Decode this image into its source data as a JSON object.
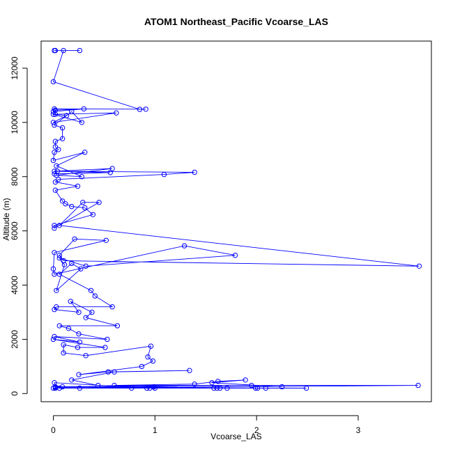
{
  "chart_data": {
    "type": "line",
    "title": "ATOM1 Northeast_Pacific Vcoarse_LAS",
    "xlabel": "Vcoarse_LAS",
    "ylabel": "Altitude (m)",
    "xlim": [
      -0.12,
      3.72
    ],
    "ylim": [
      -300,
      13000
    ],
    "xticks": [
      0,
      1,
      2,
      3
    ],
    "xtick_labels": [
      "0",
      "1",
      "2",
      "3"
    ],
    "yticks": [
      0,
      2000,
      4000,
      6000,
      8000,
      10000,
      12000
    ],
    "ytick_labels": [
      "0",
      "2000",
      "4000",
      "6000",
      "8000",
      "10000",
      "12000"
    ],
    "grid": false,
    "legend": "none",
    "series_color": "#0000ff",
    "marker": "open-circle",
    "series": [
      {
        "x": [
          0.01,
          0.26,
          0.02,
          0.1,
          0.0,
          0.85,
          0.91,
          0.01,
          0.0,
          0.3,
          0.02,
          0.02,
          0.13,
          0.0,
          0.62,
          0.0,
          0.28,
          0.18,
          0.01,
          0.09,
          0.09,
          0.02,
          0.02,
          0.05,
          0.01,
          0.0,
          0.31,
          0.03,
          0.28,
          0.03,
          0.58,
          0.01,
          0.56,
          0.01,
          0.04,
          1.39,
          1.09,
          0.05,
          0.02,
          0.24,
          0.02,
          0.09,
          0.12,
          0.18,
          0.31,
          0.39,
          0.01,
          0.01,
          0.45,
          0.29,
          0.06,
          3.6,
          0.1,
          0.06,
          0.21,
          0.52,
          0.01,
          0.0,
          0.01,
          1.29,
          1.79,
          0.32,
          0.06,
          0.11,
          0.03,
          0.27,
          0.18,
          0.06,
          0.37,
          0.41,
          0.58,
          0.03,
          0.01,
          0.25,
          0.17,
          0.38,
          0.32,
          0.63,
          0.06,
          0.15,
          0.25,
          0.53,
          0.01,
          0.26,
          0.0,
          0.51,
          0.24,
          0.1,
          0.1,
          0.32,
          0.96,
          0.93,
          0.98,
          0.87,
          0.25,
          0.54,
          1.34,
          0.6,
          0.18,
          0.44,
          1.61,
          0.99,
          0.06,
          0.92,
          0.01,
          0.02,
          1.95,
          2.25,
          1.56,
          1.89,
          1.62,
          1.39,
          0.6,
          3.59,
          0.0,
          0.09,
          2.01,
          2.49,
          1.71,
          0.95,
          0.02,
          0.02,
          0.77,
          0.26,
          1.58,
          1.99,
          1.64,
          1.0,
          2.09
        ],
        "y": [
          12650,
          12650,
          12650,
          12650,
          11500,
          10480,
          10490,
          10500,
          10400,
          10500,
          10450,
          10300,
          10250,
          10000,
          10350,
          10300,
          10000,
          10400,
          9900,
          9800,
          9400,
          9300,
          9100,
          9000,
          8900,
          8600,
          8900,
          8400,
          8000,
          8050,
          8300,
          8200,
          8150,
          8100,
          8200,
          8160,
          8080,
          7900,
          7800,
          7650,
          7500,
          7100,
          7000,
          6900,
          6850,
          6600,
          6200,
          6100,
          7050,
          7050,
          6200,
          4700,
          4900,
          5100,
          5700,
          5650,
          5200,
          4600,
          4400,
          5450,
          5100,
          4700,
          5000,
          4750,
          3800,
          4600,
          4800,
          4400,
          3800,
          3600,
          3200,
          3200,
          3100,
          3000,
          3400,
          3000,
          2800,
          2500,
          2500,
          2400,
          2200,
          2000,
          2100,
          1900,
          2000,
          1700,
          1700,
          1800,
          1500,
          1400,
          1750,
          1350,
          1200,
          1000,
          700,
          800,
          850,
          800,
          500,
          300,
          200,
          250,
          200,
          200,
          400,
          250,
          300,
          250,
          400,
          500,
          450,
          350,
          300,
          300,
          200,
          250,
          200,
          200,
          200,
          200,
          220,
          200,
          200,
          200,
          200,
          200,
          200,
          200,
          200
        ]
      }
    ]
  }
}
